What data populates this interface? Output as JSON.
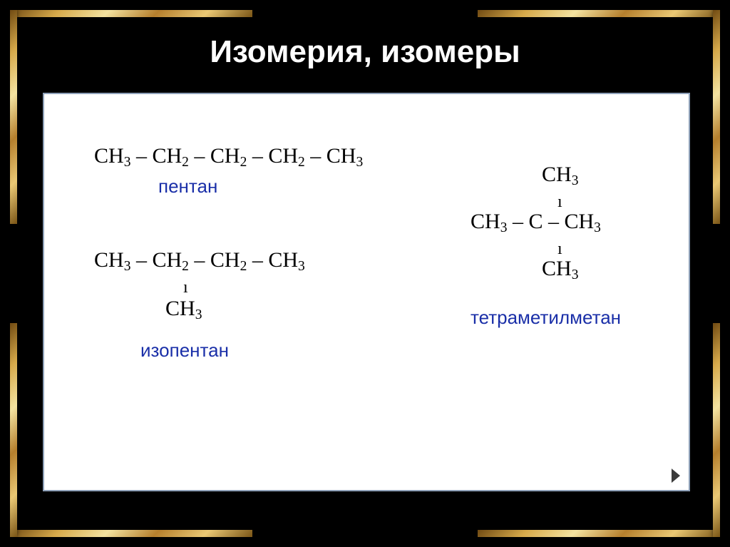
{
  "slide": {
    "title": "Изомерия, изомеры"
  },
  "panel": {
    "border_color": "#8ea0b8",
    "background_color": "#ffffff"
  },
  "molecules": {
    "pentane": {
      "formula_html": "CH<sub>3</sub> – CH<sub>2</sub> – CH<sub>2</sub> – CH<sub>2</sub> – CH<sub>3</sub>",
      "label": "пентан",
      "label_color": "#1a2fa8"
    },
    "isopentane": {
      "row1_html": "CH<sub>3</sub> – CH<sub>2</sub> – CH<sub>2</sub> – CH<sub>3</sub>",
      "bond_char": "ı",
      "row2_html": "CH<sub>3</sub>",
      "label": "изопентан",
      "label_color": "#1a2fa8"
    },
    "tetramethylmethane": {
      "top_html": "CH<sub>3</sub>",
      "mid_html": "CH<sub>3</sub> – C – CH<sub>3</sub>",
      "bot_html": "CH<sub>3</sub>",
      "bond_char": "ı",
      "label": "тетраметилметан",
      "label_color": "#1a2fa8"
    }
  },
  "frame": {
    "gradient_stops": [
      "#704a12",
      "#d6a94a",
      "#f3e2a0",
      "#b57f2d",
      "#eac874",
      "#7a5516"
    ]
  },
  "nav": {
    "next_tooltip": "Next"
  }
}
